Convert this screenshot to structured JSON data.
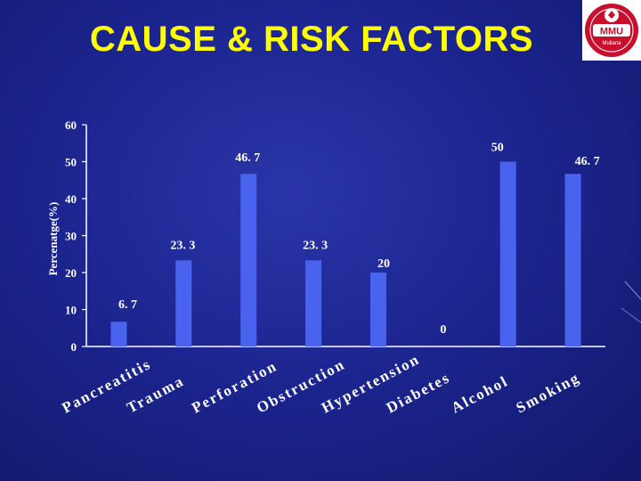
{
  "slide": {
    "title": "CAUSE & RISK FACTORS"
  },
  "logo": {
    "abbr": "MMU",
    "place": "Mullana",
    "icon": "university-crest-icon",
    "colors": {
      "primary": "#c8102e",
      "secondary": "#ffffff"
    }
  },
  "chart_data": {
    "type": "bar",
    "categories": [
      "Pancreatitis",
      "Trauma",
      "Perforation",
      "Obstruction",
      "Hypertension",
      "Diabetes",
      "Alcohol",
      "Smoking"
    ],
    "values": [
      6.7,
      23.3,
      46.7,
      23.3,
      20,
      0,
      50,
      46.7
    ],
    "value_labels": [
      "6. 7",
      "23. 3",
      "46. 7",
      "23. 3",
      "20",
      "0",
      "50",
      "46. 7"
    ],
    "ylabel": "Percenatge(%)",
    "ylim": [
      0,
      60
    ],
    "yticks": [
      0,
      10,
      20,
      30,
      40,
      50,
      60
    ],
    "grid": false,
    "colors": {
      "bar": "#4a63ee",
      "axis": "#ffffff",
      "text": "#ffffff"
    }
  }
}
